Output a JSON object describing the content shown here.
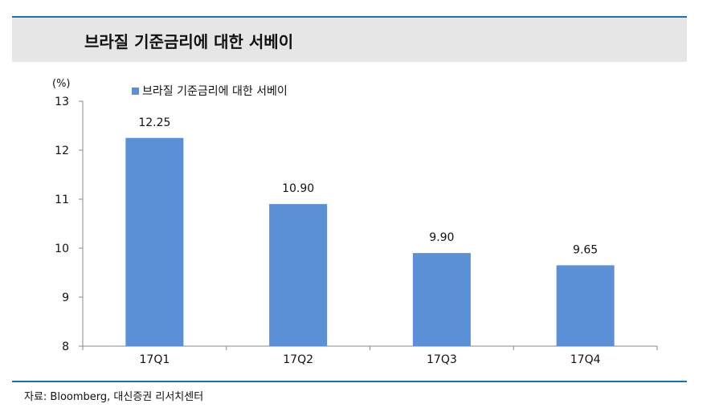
{
  "header": {
    "title": "브라질 기준금리에 대한 서베이"
  },
  "footer": {
    "source": "자료: Bloomberg, 대신증권 리서치센터"
  },
  "chart_data": {
    "type": "bar",
    "unit_label": "(%)",
    "categories": [
      "17Q1",
      "17Q2",
      "17Q3",
      "17Q4"
    ],
    "series": [
      {
        "name": "브라질 기준금리에 대한 서베이",
        "values": [
          12.25,
          10.9,
          9.9,
          9.65
        ],
        "data_labels": [
          "12.25",
          "10.90",
          "9.90",
          "9.65"
        ]
      }
    ],
    "ylim": [
      8,
      13
    ],
    "yticks": [
      8,
      9,
      10,
      11,
      12,
      13
    ],
    "legend_position": "top-left",
    "grid": false,
    "colors": {
      "bar": "#5b8fd6"
    }
  }
}
